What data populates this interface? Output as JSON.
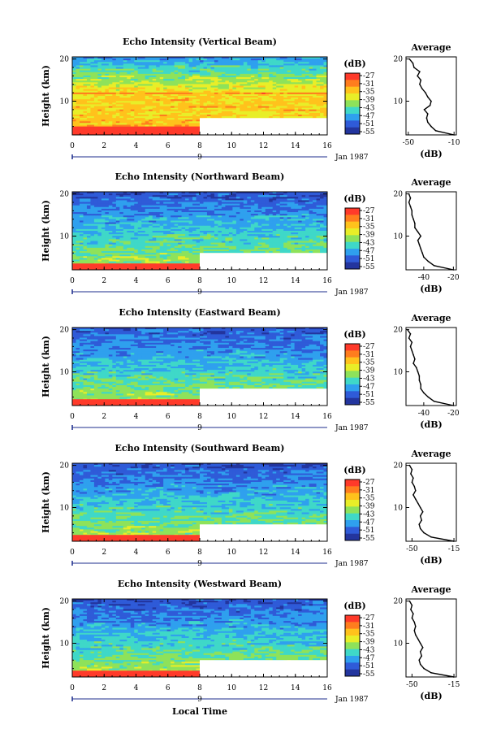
{
  "chart_data": [
    {
      "type": "heatmap",
      "title": "Echo Intensity (Vertical Beam)",
      "ylabel": "Height (km)",
      "x_ticks": [
        "0",
        "2",
        "4",
        "6",
        "8",
        "10",
        "12",
        "14",
        "16"
      ],
      "xlim": [
        0,
        16
      ],
      "y_ticks": [
        "20",
        "10"
      ],
      "ylim": [
        2,
        20.5
      ],
      "date_label": "Jan 1987",
      "day_marker": "9",
      "colorbar": {
        "unit": "(dB)",
        "ticks": [
          "-27",
          "-31",
          "-35",
          "-39",
          "-43",
          "-47",
          "-51",
          "-55"
        ]
      },
      "missing_after_hour": 8,
      "missing_below_km": 6,
      "strong_echo_below_km": 4,
      "profile": {
        "title": "Average",
        "xlabel": "(dB)",
        "x_ticks": [
          "-50",
          "-10"
        ],
        "xlim": [
          -52,
          -8
        ],
        "y_ticks": [
          "20",
          "10"
        ],
        "height": [
          2,
          3,
          4,
          5,
          6,
          7,
          8,
          9,
          10,
          11,
          12,
          13,
          14,
          15,
          16,
          17,
          18,
          19,
          20
        ],
        "value": [
          -10,
          -26,
          -30,
          -33,
          -34,
          -33,
          -36,
          -31,
          -30,
          -33,
          -35,
          -38,
          -40,
          -39,
          -42,
          -40,
          -45,
          -46,
          -49
        ]
      }
    },
    {
      "type": "heatmap",
      "title": "Echo Intensity (Northward Beam)",
      "ylabel": "Height (km)",
      "x_ticks": [
        "0",
        "2",
        "4",
        "6",
        "8",
        "10",
        "12",
        "14",
        "16"
      ],
      "xlim": [
        0,
        16
      ],
      "y_ticks": [
        "20",
        "10"
      ],
      "ylim": [
        2,
        20.5
      ],
      "date_label": "Jan 1987",
      "day_marker": "9",
      "colorbar": {
        "unit": "(dB)",
        "ticks": [
          "-27",
          "-31",
          "-35",
          "-39",
          "-43",
          "-47",
          "-51",
          "-55"
        ]
      },
      "missing_after_hour": 8,
      "missing_below_km": 6,
      "strong_echo_below_km": 3.5,
      "profile": {
        "title": "Average",
        "xlabel": "(dB)",
        "x_ticks": [
          "-40",
          "-20"
        ],
        "xlim": [
          -52,
          -18
        ],
        "y_ticks": [
          "20",
          "10"
        ],
        "height": [
          2,
          3,
          4,
          5,
          6,
          7,
          8,
          9,
          10,
          11,
          12,
          13,
          14,
          15,
          16,
          17,
          18,
          19,
          20
        ],
        "value": [
          -20,
          -33,
          -37,
          -40,
          -41,
          -42,
          -43,
          -44,
          -42,
          -44,
          -46,
          -46,
          -47,
          -48,
          -48,
          -49,
          -50,
          -49,
          -50
        ]
      }
    },
    {
      "type": "heatmap",
      "title": "Echo Intensity (Eastward Beam)",
      "ylabel": "Height (km)",
      "x_ticks": [
        "0",
        "2",
        "4",
        "6",
        "8",
        "10",
        "12",
        "14",
        "16"
      ],
      "xlim": [
        0,
        16
      ],
      "y_ticks": [
        "20",
        "10"
      ],
      "ylim": [
        2,
        20.5
      ],
      "date_label": "Jan 1987",
      "day_marker": "9",
      "colorbar": {
        "unit": "(dB)",
        "ticks": [
          "-27",
          "-31",
          "-35",
          "-39",
          "-43",
          "-47",
          "-51",
          "-55"
        ]
      },
      "missing_after_hour": 8,
      "missing_below_km": 6,
      "strong_echo_below_km": 3.5,
      "profile": {
        "title": "Average",
        "xlabel": "(dB)",
        "x_ticks": [
          "-40",
          "-20"
        ],
        "xlim": [
          -52,
          -18
        ],
        "y_ticks": [
          "20",
          "10"
        ],
        "height": [
          2,
          3,
          4,
          5,
          6,
          7,
          8,
          9,
          10,
          11,
          12,
          13,
          14,
          15,
          16,
          17,
          18,
          19,
          20
        ],
        "value": [
          -20,
          -33,
          -37,
          -40,
          -42,
          -42,
          -43,
          -43,
          -44,
          -45,
          -47,
          -46,
          -47,
          -48,
          -49,
          -48,
          -50,
          -49,
          -51
        ]
      }
    },
    {
      "type": "heatmap",
      "title": "Echo Intensity (Southward Beam)",
      "ylabel": "Height (km)",
      "x_ticks": [
        "0",
        "2",
        "4",
        "6",
        "8",
        "10",
        "12",
        "14",
        "16"
      ],
      "xlim": [
        0,
        16
      ],
      "y_ticks": [
        "20",
        "10"
      ],
      "ylim": [
        2,
        20.5
      ],
      "date_label": "Jan 1987",
      "day_marker": "9",
      "colorbar": {
        "unit": "(dB)",
        "ticks": [
          "-27",
          "-31",
          "-35",
          "-39",
          "-43",
          "-47",
          "-51",
          "-55"
        ]
      },
      "missing_after_hour": 8,
      "missing_below_km": 6,
      "strong_echo_below_km": 3.5,
      "profile": {
        "title": "Average",
        "xlabel": "(dB)",
        "x_ticks": [
          "-50",
          "-15"
        ],
        "xlim": [
          -55,
          -13
        ],
        "y_ticks": [
          "20",
          "10"
        ],
        "height": [
          2,
          3,
          4,
          5,
          6,
          7,
          8,
          9,
          10,
          11,
          12,
          13,
          14,
          15,
          16,
          17,
          18,
          19,
          20
        ],
        "value": [
          -15,
          -34,
          -40,
          -43,
          -44,
          -42,
          -43,
          -41,
          -43,
          -45,
          -47,
          -49,
          -47,
          -48,
          -50,
          -49,
          -51,
          -50,
          -52
        ]
      }
    },
    {
      "type": "heatmap",
      "title": "Echo Intensity (Westward Beam)",
      "ylabel": "Height (km)",
      "x_ticks": [
        "0",
        "2",
        "4",
        "6",
        "8",
        "10",
        "12",
        "14",
        "16"
      ],
      "xlim": [
        0,
        16
      ],
      "y_ticks": [
        "20",
        "10"
      ],
      "ylim": [
        2,
        20.5
      ],
      "date_label": "Jan 1987",
      "day_marker": "9",
      "xlabel": "Local Time",
      "colorbar": {
        "unit": "(dB)",
        "ticks": [
          "-27",
          "-31",
          "-35",
          "-39",
          "-43",
          "-47",
          "-51",
          "-55"
        ]
      },
      "missing_after_hour": 8,
      "missing_below_km": 6,
      "strong_echo_below_km": 3.5,
      "profile": {
        "title": "Average",
        "xlabel": "(dB)",
        "x_ticks": [
          "-50",
          "-15"
        ],
        "xlim": [
          -55,
          -13
        ],
        "y_ticks": [
          "20",
          "10"
        ],
        "height": [
          2,
          3,
          4,
          5,
          6,
          7,
          8,
          9,
          10,
          11,
          12,
          13,
          14,
          15,
          16,
          17,
          18,
          19,
          20
        ],
        "value": [
          -15,
          -34,
          -40,
          -43,
          -44,
          -42,
          -43,
          -41,
          -43,
          -45,
          -47,
          -48,
          -47,
          -48,
          -50,
          -49,
          -51,
          -50,
          -52
        ]
      }
    }
  ],
  "colors": {
    "scale": [
      "#ff3a2a",
      "#ff7d1e",
      "#ffc21c",
      "#e8ee28",
      "#8ee25a",
      "#3fd8c8",
      "#2fa0ee",
      "#2f5bd8",
      "#23359e"
    ],
    "missing": "#ffffff",
    "axis": "#000000",
    "marker": "#1c2c8c"
  }
}
